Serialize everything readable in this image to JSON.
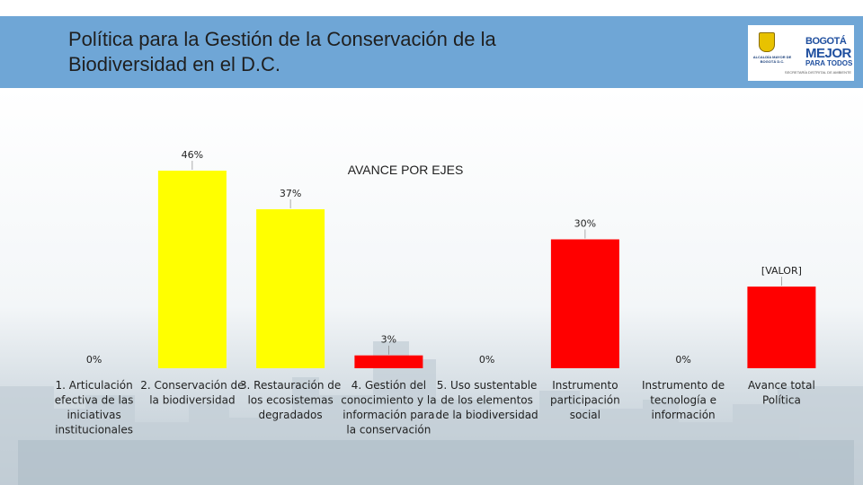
{
  "header": {
    "title_line1": "Política para la Gestión de la Conservación de la",
    "title_line2": "Biodiversidad en el D.C."
  },
  "logo": {
    "city": "ALCALDÍA MAYOR DE BOGOTÁ D.C.",
    "brand_small": "BOGOTÁ",
    "brand_main": "MEJOR",
    "brand_sub": "PARA TODOS",
    "department": "SECRETARÍA DISTRITAL DE AMBIENTE"
  },
  "colors": {
    "header_bg": "#6fa6d6",
    "yellow": "#ffff00",
    "red": "#ff0000"
  },
  "chart_data": {
    "type": "bar",
    "title": "AVANCE POR EJES",
    "ylim": [
      0,
      46
    ],
    "categories": [
      "1. Articulación efectiva de las iniciativas institucionales",
      "2. Conservación de la biodiversidad",
      "3. Restauración de los ecosistemas degradados",
      "4. Gestión del conocimiento y la información para la conservación",
      "5. Uso sustentable de los elementos de la biodiversidad",
      "Instrumento participación social",
      "Instrumento de tecnología e información",
      "Avance total Política"
    ],
    "category_lines": [
      [
        "1. Articulación",
        "efectiva de las",
        "iniciativas",
        "institucionales"
      ],
      [
        "2. Conservación de",
        "la biodiversidad"
      ],
      [
        "3. Restauración de",
        "los ecosistemas",
        "degradados"
      ],
      [
        "4. Gestión del",
        "conocimiento y la",
        "información para",
        "la conservación"
      ],
      [
        "5. Uso sustentable",
        "de los elementos",
        "de la biodiversidad"
      ],
      [
        "Instrumento",
        "participación",
        "social"
      ],
      [
        "Instrumento de",
        "tecnología e",
        "información"
      ],
      [
        "Avance total",
        "Política"
      ]
    ],
    "values": [
      0,
      46,
      37,
      3,
      0,
      30,
      0,
      19
    ],
    "labels": [
      "0%",
      "46%",
      "37%",
      "3%",
      "0%",
      "30%",
      "0%",
      "[VALOR]"
    ],
    "bar_colors": [
      "#ffff00",
      "#ffff00",
      "#ffff00",
      "#ff0000",
      "#ff0000",
      "#ff0000",
      "#ff0000",
      "#ff0000"
    ]
  }
}
